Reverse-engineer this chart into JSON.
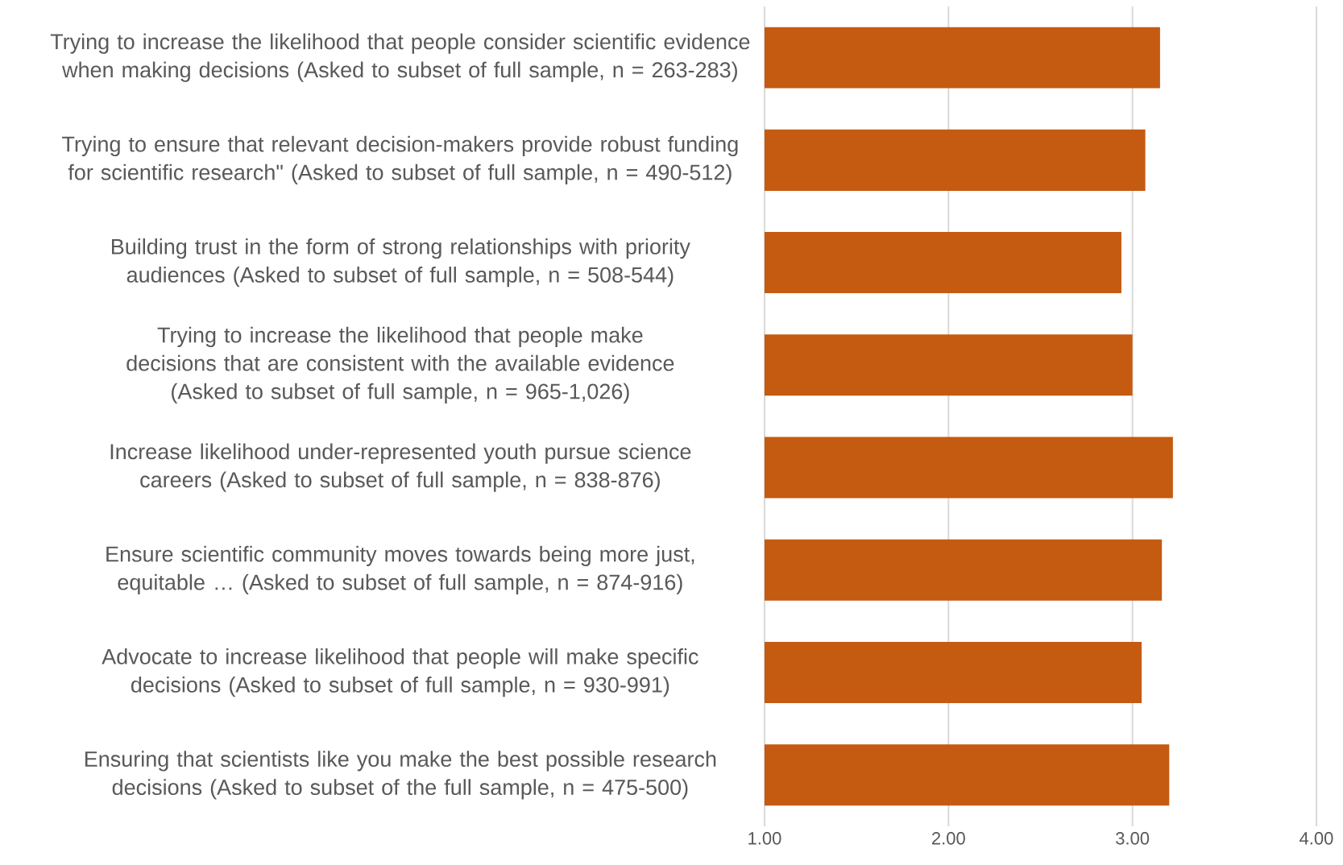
{
  "chart_data": {
    "type": "bar",
    "orientation": "horizontal",
    "categories": [
      "Trying to increase the likelihood that people consider scientific evidence when making decisions (Asked to subset of full sample, n = 263-283)",
      "Trying to ensure that relevant decision-makers provide robust funding for scientific research\" (Asked to subset of full sample, n = 490-512)",
      "Building trust in the form of strong relationships with priority audiences (Asked to subset of full sample, n = 508-544)",
      "Trying to increase the likelihood that people make decisions that are consistent with the available evidence (Asked to subset of full sample, n = 965-1,026)",
      "Increase likelihood under-represented youth pursue science careers (Asked to subset of full sample, n = 838-876)",
      "Ensure scientific community moves  towards being more just, equitable … (Asked to subset of full sample, n = 874-916)",
      "Advocate to increase likelihood that people will make specific decisions (Asked to subset of full sample, n = 930-991)",
      "Ensuring that scientists like you make the best possible research decisions (Asked to subset of the full sample, n = 475-500)"
    ],
    "values": [
      3.15,
      3.07,
      2.94,
      3.0,
      3.22,
      3.16,
      3.05,
      3.2
    ],
    "color": "#c55a11",
    "xlim": [
      1,
      4
    ],
    "xticks": [
      {
        "value": 1,
        "label": "1.00"
      },
      {
        "value": 2,
        "label": "2.00"
      },
      {
        "value": 3,
        "label": "3.00"
      },
      {
        "value": 4,
        "label": "4.00"
      }
    ],
    "grid": "x"
  }
}
